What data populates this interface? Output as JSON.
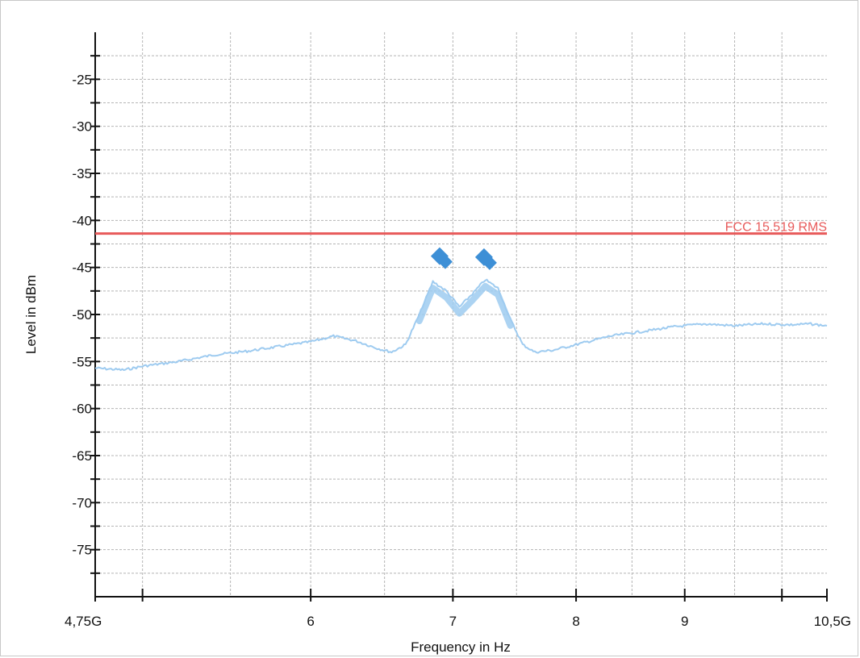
{
  "chart_data": {
    "type": "line",
    "xlabel": "Frequency in Hz",
    "ylabel": "Level in dBm",
    "x_scale": "log",
    "xlim": [
      4750000000,
      10500000000
    ],
    "ylim": [
      -80,
      -20
    ],
    "grid": true,
    "x_ticks": [
      {
        "value": 4750000000,
        "label": "4,75G"
      },
      {
        "value": 6000000000,
        "label": "6"
      },
      {
        "value": 7000000000,
        "label": "7"
      },
      {
        "value": 8000000000,
        "label": "8"
      },
      {
        "value": 9000000000,
        "label": "9"
      },
      {
        "value": 10500000000,
        "label": "10,5G"
      }
    ],
    "y_ticks": [
      {
        "value": -25,
        "label": "-25"
      },
      {
        "value": -30,
        "label": "-30"
      },
      {
        "value": -35,
        "label": "-35"
      },
      {
        "value": -40,
        "label": "-40"
      },
      {
        "value": -45,
        "label": "-45"
      },
      {
        "value": -50,
        "label": "-50"
      },
      {
        "value": -55,
        "label": "-55"
      },
      {
        "value": -60,
        "label": "-60"
      },
      {
        "value": -65,
        "label": "-65"
      },
      {
        "value": -70,
        "label": "-70"
      },
      {
        "value": -75,
        "label": "-75"
      }
    ],
    "series": [
      {
        "color": "#9ecbf0",
        "x": [
          4750000000,
          4900000000,
          5000000000,
          5200000000,
          5400000000,
          5600000000,
          5800000000,
          6000000000,
          6150000000,
          6300000000,
          6450000000,
          6550000000,
          6650000000,
          6750000000,
          6850000000,
          6950000000,
          7050000000,
          7150000000,
          7250000000,
          7350000000,
          7450000000,
          7550000000,
          7650000000,
          7800000000,
          8000000000,
          8300000000,
          8600000000,
          8900000000,
          9200000000,
          9500000000,
          9800000000,
          10100000000,
          10300000000,
          10500000000
        ],
        "y": [
          -55.7,
          -55.9,
          -55.5,
          -55.0,
          -54.3,
          -53.9,
          -53.4,
          -52.9,
          -52.3,
          -52.8,
          -53.6,
          -54.0,
          -53.2,
          -50.0,
          -46.5,
          -47.5,
          -49.2,
          -47.8,
          -46.3,
          -47.2,
          -50.5,
          -53.2,
          -54.0,
          -53.8,
          -53.2,
          -52.3,
          -51.8,
          -51.3,
          -51.0,
          -51.2,
          -51.0,
          -51.1,
          -51.0,
          -51.2
        ]
      }
    ],
    "limit_lines": [
      {
        "label": "FCC 15.519 RMS",
        "y": -41.4,
        "color": "#e85a5a"
      }
    ],
    "markers": [
      {
        "x": 6900000000,
        "y": -43.8,
        "color": "#3d8fd6"
      },
      {
        "x": 7240000000,
        "y": -43.9,
        "color": "#3d8fd6"
      }
    ]
  }
}
